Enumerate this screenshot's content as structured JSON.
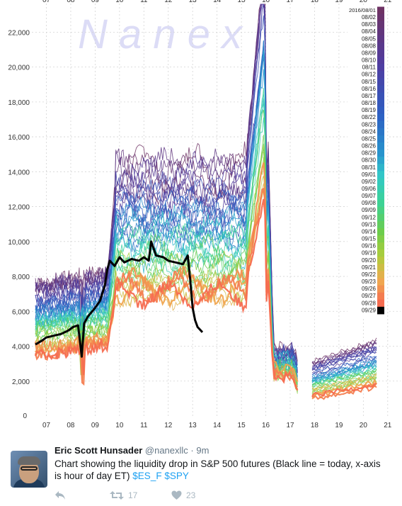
{
  "watermark": "N a n e x",
  "chart_data": {
    "type": "line",
    "xlabel": "",
    "ylabel": "",
    "x_ticks": [
      "07",
      "08",
      "09",
      "10",
      "11",
      "12",
      "13",
      "14",
      "15",
      "16",
      "17",
      "18",
      "19",
      "20",
      "21"
    ],
    "x_tick_values": [
      7,
      8,
      9,
      10,
      11,
      12,
      13,
      14,
      15,
      16,
      17,
      18,
      19,
      20,
      21
    ],
    "y_ticks": [
      "0",
      "2,000",
      "4,000",
      "6,000",
      "8,000",
      "10,000",
      "12,000",
      "14,000",
      "16,000",
      "18,000",
      "20,000",
      "22,000"
    ],
    "y_tick_values": [
      0,
      2000,
      4000,
      6000,
      8000,
      10000,
      12000,
      14000,
      16000,
      18000,
      20000,
      22000
    ],
    "xlim": [
      6.55,
      21.3
    ],
    "ylim": [
      0,
      23700
    ],
    "grid": true,
    "legend": {
      "placement": "right",
      "title": "2016/08/01",
      "entries": [
        "08/02",
        "08/03",
        "08/04",
        "08/05",
        "08/08",
        "08/09",
        "08/10",
        "08/11",
        "08/12",
        "08/15",
        "08/16",
        "08/17",
        "08/18",
        "08/19",
        "08/22",
        "08/23",
        "08/24",
        "08/25",
        "08/26",
        "08/29",
        "08/30",
        "08/31",
        "09/01",
        "09/02",
        "09/06",
        "09/07",
        "09/08",
        "09/09",
        "09/12",
        "09/13",
        "09/14",
        "09/15",
        "09/16",
        "09/19",
        "09/20",
        "09/21",
        "09/22",
        "09/23",
        "09/26",
        "09/27",
        "09/28",
        "09/29"
      ]
    },
    "today_series": {
      "name": "09/29",
      "color": "#000000",
      "x": [
        6.55,
        6.8,
        7.0,
        7.3,
        7.6,
        7.9,
        8.1,
        8.3,
        8.45,
        8.55,
        8.7,
        9.0,
        9.2,
        9.4,
        9.5,
        9.6,
        9.8,
        10.0,
        10.2,
        10.5,
        10.8,
        11.0,
        11.2,
        11.3,
        11.5,
        11.8,
        12.0,
        12.3,
        12.6,
        12.8,
        12.9,
        13.0,
        13.1,
        13.2,
        13.4
      ],
      "y": [
        4100,
        4300,
        4500,
        4600,
        4700,
        4900,
        5100,
        5200,
        3400,
        5300,
        5700,
        6200,
        6600,
        7500,
        8400,
        8900,
        8600,
        9100,
        8800,
        9000,
        8900,
        9100,
        8900,
        10000,
        9200,
        9100,
        8900,
        8800,
        8700,
        9200,
        7800,
        6200,
        5500,
        5100,
        4800
      ]
    },
    "period_gaps": [
      [
        16.95,
        17.0
      ],
      [
        17.3,
        17.9
      ]
    ],
    "axis_extra_label": "0"
  },
  "tweet": {
    "name": "Eric Scott Hunsader",
    "handle": "@nanexllc",
    "dot": "·",
    "time": "9m",
    "text": "Chart showing the liquidity drop in S&P 500 futures (Black line = today, x-axis is hour of day ET) ",
    "tag1": "$ES_F",
    "tag2": "$SPY",
    "retweets": "17",
    "likes": "23"
  },
  "colors": {
    "link": "#1da1f2",
    "muted": "#657786",
    "action": "#aab8c2"
  }
}
